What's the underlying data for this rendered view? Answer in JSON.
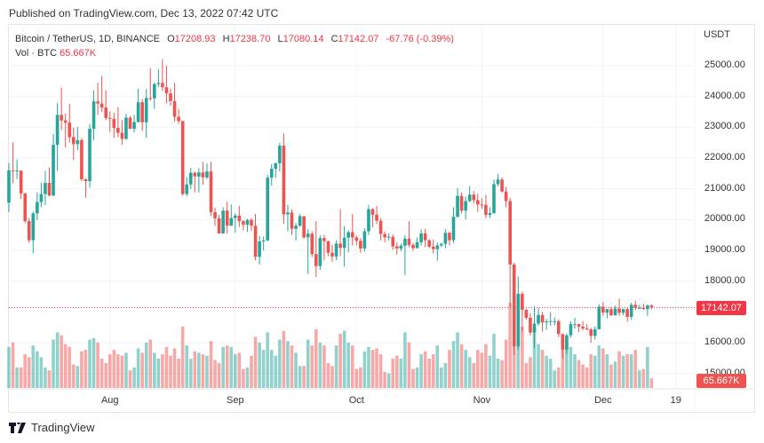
{
  "published": "Published on TradingView.com, Dec 13, 2022 07:42 UTC",
  "legend": {
    "symbol": "Bitcoin / TetherUS, 1D, BINANCE",
    "o_label": "O",
    "o": "17208.93",
    "h_label": "H",
    "h": "17238.70",
    "l_label": "L",
    "l": "17080.14",
    "c_label": "C",
    "c": "17142.07",
    "change": "-67.76 (-0.39%)",
    "vol_label": "Vol · BTC",
    "vol": "65.667K"
  },
  "price_axis": {
    "currency": "USDT",
    "ticks": [
      "25000.00",
      "24000.00",
      "23000.00",
      "22000.00",
      "21000.00",
      "20000.00",
      "19000.00",
      "18000.00",
      "16000.00",
      "15000.00"
    ],
    "last_price": "17142.07",
    "last_volume": "65.667K"
  },
  "time_axis": {
    "ticks": [
      "Aug",
      "Sep",
      "Oct",
      "Nov",
      "Dec",
      "19"
    ]
  },
  "footer": {
    "brand": "TradingView"
  },
  "colors": {
    "up": "#26a69a",
    "down": "#ef5350",
    "badge": "#f23645",
    "volume_badge": "#ef5350"
  },
  "chart_data": {
    "type": "candlestick",
    "interval": "1D",
    "first_date": "2022-07-07",
    "last_date": "2022-12-13",
    "ylim": [
      14800,
      25800
    ],
    "grid": true,
    "columns": [
      "open",
      "high",
      "low",
      "close",
      "volume_k"
    ],
    "candles": [
      [
        20550,
        21840,
        20240,
        21600,
        280
      ],
      [
        21600,
        22500,
        21180,
        21590,
        310
      ],
      [
        21590,
        21950,
        21320,
        21590,
        140
      ],
      [
        21590,
        21600,
        20660,
        20850,
        140
      ],
      [
        20850,
        20870,
        19880,
        19950,
        230
      ],
      [
        19950,
        20060,
        19240,
        19330,
        210
      ],
      [
        19330,
        20260,
        18910,
        20200,
        290
      ],
      [
        20200,
        20880,
        19980,
        20570,
        250
      ],
      [
        20570,
        21200,
        20400,
        20830,
        210
      ],
      [
        20830,
        21580,
        20470,
        21190,
        140
      ],
      [
        21190,
        21690,
        20760,
        20780,
        120
      ],
      [
        20780,
        22780,
        20760,
        22430,
        330
      ],
      [
        22430,
        23790,
        21580,
        23400,
        380
      ],
      [
        23400,
        24280,
        22910,
        23220,
        360
      ],
      [
        23220,
        23440,
        22340,
        23150,
        300
      ],
      [
        23150,
        23760,
        22500,
        22680,
        280
      ],
      [
        22680,
        22990,
        21930,
        22450,
        160
      ],
      [
        22450,
        23010,
        22260,
        22580,
        150
      ],
      [
        22580,
        22650,
        21250,
        21310,
        250
      ],
      [
        21310,
        21340,
        20710,
        21250,
        260
      ],
      [
        21250,
        23110,
        21040,
        22950,
        330
      ],
      [
        22950,
        24200,
        22580,
        23840,
        340
      ],
      [
        23840,
        24440,
        23400,
        23770,
        310
      ],
      [
        23770,
        24670,
        23500,
        23640,
        200
      ],
      [
        23640,
        24200,
        23230,
        23300,
        170
      ],
      [
        23300,
        23510,
        22850,
        23270,
        230
      ],
      [
        23270,
        23470,
        22650,
        22980,
        260
      ],
      [
        22980,
        23650,
        22680,
        22820,
        230
      ],
      [
        22820,
        23230,
        22430,
        22620,
        220
      ],
      [
        22620,
        23450,
        22590,
        23310,
        240
      ],
      [
        23310,
        23360,
        22940,
        22950,
        120
      ],
      [
        22950,
        23400,
        22830,
        23170,
        140
      ],
      [
        23170,
        24250,
        23150,
        23810,
        270
      ],
      [
        23810,
        23920,
        22880,
        23160,
        240
      ],
      [
        23160,
        24240,
        22660,
        23950,
        310
      ],
      [
        23950,
        24920,
        23860,
        23940,
        330
      ],
      [
        23940,
        24450,
        23600,
        24400,
        240
      ],
      [
        24400,
        24890,
        24300,
        24440,
        200
      ],
      [
        24440,
        25210,
        24180,
        24300,
        230
      ],
      [
        24300,
        25000,
        23780,
        24100,
        280
      ],
      [
        24100,
        24250,
        23700,
        23850,
        220
      ],
      [
        23850,
        24450,
        23180,
        23340,
        270
      ],
      [
        23340,
        23600,
        23110,
        23200,
        200
      ],
      [
        23200,
        23210,
        20780,
        20830,
        420
      ],
      [
        20830,
        21380,
        20760,
        21140,
        290
      ],
      [
        21140,
        21680,
        21000,
        21520,
        200
      ],
      [
        21520,
        21560,
        20890,
        21400,
        250
      ],
      [
        21400,
        21670,
        20880,
        21530,
        240
      ],
      [
        21530,
        21880,
        21130,
        21370,
        230
      ],
      [
        21370,
        21820,
        21310,
        21560,
        220
      ],
      [
        21560,
        21870,
        20110,
        20240,
        320
      ],
      [
        20240,
        20390,
        19800,
        20040,
        190
      ],
      [
        20040,
        20150,
        19550,
        19550,
        170
      ],
      [
        19550,
        20400,
        19540,
        20290,
        280
      ],
      [
        20290,
        20580,
        19540,
        19800,
        290
      ],
      [
        19800,
        20490,
        19800,
        20050,
        280
      ],
      [
        20050,
        20200,
        19570,
        20130,
        230
      ],
      [
        20130,
        20450,
        19760,
        19950,
        240
      ],
      [
        19950,
        19980,
        19650,
        19830,
        130
      ],
      [
        19830,
        20020,
        19600,
        19990,
        140
      ],
      [
        19990,
        20050,
        19630,
        19800,
        220
      ],
      [
        19800,
        20180,
        18680,
        18790,
        350
      ],
      [
        18790,
        19460,
        18540,
        19290,
        310
      ],
      [
        19290,
        19450,
        19000,
        19320,
        260
      ],
      [
        19320,
        21450,
        19300,
        21360,
        380
      ],
      [
        21360,
        21800,
        21100,
        21650,
        260
      ],
      [
        21650,
        21850,
        21350,
        21830,
        220
      ],
      [
        21830,
        22490,
        21560,
        22400,
        330
      ],
      [
        22400,
        22800,
        19860,
        20170,
        390
      ],
      [
        20170,
        20480,
        19620,
        20230,
        320
      ],
      [
        20230,
        20330,
        19500,
        19700,
        290
      ],
      [
        19700,
        19890,
        19320,
        19800,
        240
      ],
      [
        19800,
        20190,
        19770,
        20110,
        150
      ],
      [
        20110,
        20110,
        19380,
        19420,
        150
      ],
      [
        19420,
        19690,
        18230,
        19540,
        330
      ],
      [
        19540,
        19620,
        18780,
        18880,
        290
      ],
      [
        18880,
        19950,
        18130,
        18490,
        400
      ],
      [
        18490,
        19490,
        18360,
        19400,
        310
      ],
      [
        19400,
        19500,
        18680,
        19300,
        290
      ],
      [
        19300,
        19310,
        18810,
        18920,
        170
      ],
      [
        18920,
        19180,
        18630,
        18800,
        150
      ],
      [
        18800,
        19320,
        18680,
        19220,
        290
      ],
      [
        19220,
        20340,
        18810,
        19080,
        370
      ],
      [
        19080,
        19790,
        18470,
        19410,
        390
      ],
      [
        19410,
        19650,
        18930,
        19590,
        310
      ],
      [
        19590,
        20180,
        19150,
        19420,
        290
      ],
      [
        19420,
        19480,
        19160,
        19310,
        130
      ],
      [
        19310,
        19400,
        18920,
        19060,
        140
      ],
      [
        19060,
        19720,
        18960,
        19620,
        250
      ],
      [
        19620,
        20480,
        19500,
        20340,
        280
      ],
      [
        20340,
        20370,
        19750,
        20160,
        260
      ],
      [
        20160,
        20450,
        19850,
        19960,
        270
      ],
      [
        19960,
        20050,
        19320,
        19530,
        230
      ],
      [
        19530,
        19610,
        19260,
        19420,
        110
      ],
      [
        19420,
        19560,
        19320,
        19440,
        100
      ],
      [
        19440,
        19520,
        19020,
        19130,
        200
      ],
      [
        19130,
        19260,
        18860,
        19060,
        220
      ],
      [
        19060,
        19220,
        18970,
        19150,
        200
      ],
      [
        19150,
        19500,
        18190,
        19380,
        380
      ],
      [
        19380,
        19950,
        19100,
        19180,
        310
      ],
      [
        19180,
        19230,
        18980,
        19070,
        130
      ],
      [
        19070,
        19420,
        19070,
        19260,
        140
      ],
      [
        19260,
        19680,
        19160,
        19550,
        230
      ],
      [
        19550,
        19700,
        19100,
        19330,
        250
      ],
      [
        19330,
        19360,
        19070,
        19120,
        200
      ],
      [
        19120,
        19350,
        18900,
        19040,
        230
      ],
      [
        19040,
        19250,
        18660,
        19160,
        290
      ],
      [
        19160,
        19250,
        19110,
        19210,
        140
      ],
      [
        19210,
        19690,
        19070,
        19570,
        170
      ],
      [
        19570,
        19600,
        19160,
        19330,
        260
      ],
      [
        19330,
        20400,
        19240,
        20090,
        320
      ],
      [
        20090,
        21020,
        20060,
        20770,
        380
      ],
      [
        20770,
        20880,
        20200,
        20290,
        300
      ],
      [
        20290,
        20750,
        20000,
        20600,
        260
      ],
      [
        20600,
        21090,
        20560,
        20810,
        210
      ],
      [
        20810,
        20930,
        20520,
        20630,
        170
      ],
      [
        20630,
        20840,
        20250,
        20490,
        260
      ],
      [
        20490,
        20700,
        20350,
        20480,
        240
      ],
      [
        20480,
        20800,
        20050,
        20150,
        300
      ],
      [
        20150,
        20400,
        20050,
        20210,
        220
      ],
      [
        20210,
        21300,
        20180,
        21150,
        370
      ],
      [
        21150,
        21480,
        21080,
        21300,
        200
      ],
      [
        21300,
        21370,
        20880,
        20910,
        190
      ],
      [
        20910,
        21070,
        20390,
        20600,
        330
      ],
      [
        20600,
        20700,
        17170,
        18540,
        580
      ],
      [
        18540,
        18600,
        15590,
        15880,
        650
      ],
      [
        15880,
        18150,
        15760,
        17590,
        600
      ],
      [
        17590,
        17660,
        16360,
        17070,
        420
      ],
      [
        17070,
        17090,
        16760,
        16810,
        170
      ],
      [
        16810,
        16950,
        16230,
        16330,
        210
      ],
      [
        16330,
        17190,
        15820,
        16620,
        410
      ],
      [
        16620,
        17130,
        16540,
        16900,
        300
      ],
      [
        16900,
        17000,
        16360,
        16660,
        260
      ],
      [
        16660,
        16770,
        16420,
        16690,
        220
      ],
      [
        16690,
        17000,
        16550,
        16700,
        200
      ],
      [
        16700,
        16820,
        16560,
        16700,
        120
      ],
      [
        16700,
        16750,
        16180,
        16280,
        140
      ],
      [
        16280,
        16300,
        15480,
        15780,
        340
      ],
      [
        15780,
        16300,
        15620,
        16240,
        300
      ],
      [
        16240,
        16700,
        16160,
        16600,
        280
      ],
      [
        16600,
        16810,
        16460,
        16600,
        230
      ],
      [
        16600,
        16620,
        16350,
        16520,
        190
      ],
      [
        16520,
        16700,
        16410,
        16460,
        160
      ],
      [
        16460,
        16600,
        16410,
        16430,
        140
      ],
      [
        16430,
        16490,
        16000,
        16220,
        230
      ],
      [
        16220,
        16530,
        16100,
        16440,
        220
      ],
      [
        16440,
        17250,
        16430,
        17170,
        290
      ],
      [
        17170,
        17320,
        16860,
        16980,
        270
      ],
      [
        16980,
        17100,
        16790,
        17090,
        230
      ],
      [
        17090,
        17160,
        16870,
        16890,
        160
      ],
      [
        16890,
        17200,
        16880,
        17110,
        180
      ],
      [
        17110,
        17420,
        16870,
        16970,
        250
      ],
      [
        16970,
        17110,
        16900,
        17090,
        220
      ],
      [
        17090,
        17140,
        16680,
        16840,
        230
      ],
      [
        16840,
        17300,
        16740,
        17230,
        230
      ],
      [
        17230,
        17360,
        17060,
        17130,
        260
      ],
      [
        17130,
        17230,
        17090,
        17130,
        120
      ],
      [
        17130,
        17270,
        17070,
        17090,
        130
      ],
      [
        17090,
        17240,
        16870,
        17210,
        280
      ],
      [
        17208.93,
        17238.7,
        17080.14,
        17142.07,
        65.667
      ]
    ]
  }
}
